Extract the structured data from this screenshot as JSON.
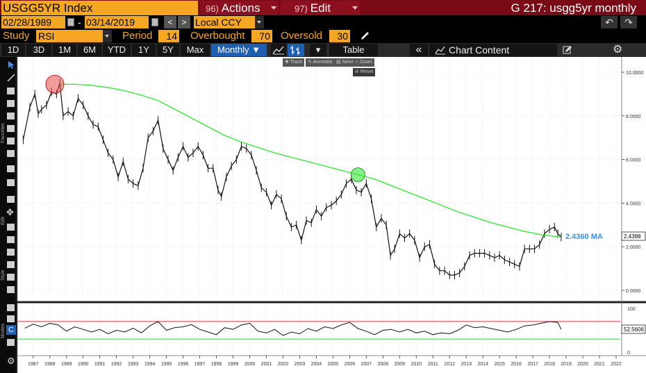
{
  "header": {
    "ticker": "USGG5YR Index",
    "actions_num": "96)",
    "actions_label": "Actions",
    "edit_num": "97)",
    "edit_label": "Edit",
    "window_title": "G 217: usgg5yr monthly"
  },
  "range": {
    "start_date": "02/28/1989",
    "separator": "-",
    "end_date": "03/14/2019",
    "prev": "<",
    "next": ">",
    "currency": "Local CCY"
  },
  "study": {
    "study_label": "Study",
    "study_value": "RSI",
    "period_label": "Period",
    "period_value": "14",
    "overbought_label": "Overbought",
    "overbought_value": "70",
    "oversold_label": "Oversold",
    "oversold_value": "30"
  },
  "toolbar": {
    "periods": [
      "1D",
      "3D",
      "1M",
      "6M",
      "YTD",
      "1Y",
      "5Y",
      "Max"
    ],
    "frequency": "Monthly ▼",
    "table_label": "Table",
    "chart_content_label": "Chart Content",
    "collapse": "«"
  },
  "side": {
    "favorites": "Favorites",
    "edit": "Edit",
    "style": "Style",
    "modes": "Modes"
  },
  "mini_toolbar": {
    "track": "Track",
    "annotate": "Annotate",
    "news": "News",
    "zoom": "Zoom",
    "reset": "Reset"
  },
  "colors": {
    "accent_orange": "#f5a623",
    "header_red": "#7a0a16",
    "ma_green": "#39e639",
    "rsi_red": "#e03030",
    "label_blue": "#3d8fe0"
  },
  "chart_data": {
    "type": "line",
    "price_panel": {
      "series": [
        {
          "x": [
            1986.9,
            1987.3,
            1987.6,
            1987.8,
            1988.0,
            1988.3,
            1988.6,
            1988.9,
            1989.1,
            1989.3,
            1989.6,
            1989.9,
            1990.2,
            1990.5,
            1990.8,
            1991.1,
            1991.4,
            1991.7,
            1992.0,
            1992.3,
            1992.6,
            1992.9,
            1993.2,
            1993.5,
            1993.8,
            1994.1,
            1994.4,
            1994.7,
            1995.0,
            1995.3,
            1995.6,
            1995.9,
            1996.2,
            1996.5,
            1996.8,
            1997.1,
            1997.4,
            1997.7,
            1998.0,
            1998.3,
            1998.6,
            1998.8,
            1999.1,
            1999.4,
            1999.7,
            2000.0,
            2000.3,
            2000.6,
            2000.9,
            2001.2,
            2001.5,
            2001.8,
            2002.1,
            2002.4,
            2002.7,
            2003.0,
            2003.3,
            2003.6,
            2003.9,
            2004.2,
            2004.5,
            2004.8,
            2005.1,
            2005.4,
            2005.7,
            2006.0,
            2006.3,
            2006.6,
            2006.9,
            2007.2,
            2007.5,
            2007.8,
            2008.1,
            2008.4,
            2008.7,
            2008.95,
            2009.2,
            2009.5,
            2009.8,
            2010.1,
            2010.4,
            2010.7,
            2011.0,
            2011.3,
            2011.6,
            2011.9,
            2012.2,
            2012.5,
            2012.8,
            2013.1,
            2013.4,
            2013.7,
            2014.0,
            2014.3,
            2014.6,
            2014.9,
            2015.2,
            2015.5,
            2015.8,
            2016.1,
            2016.4,
            2016.7,
            2017.0,
            2017.3,
            2017.6,
            2017.9,
            2018.2,
            2018.5,
            2018.8,
            2019.0,
            2019.2
          ],
          "values": [
            6.9,
            8.4,
            9.0,
            8.1,
            8.3,
            8.5,
            9.1,
            9.0,
            9.5,
            8.0,
            8.2,
            8.0,
            8.8,
            8.5,
            8.0,
            7.6,
            7.5,
            6.9,
            6.3,
            6.0,
            5.2,
            5.9,
            5.1,
            4.9,
            4.8,
            5.6,
            7.0,
            7.3,
            7.8,
            6.5,
            6.0,
            5.5,
            6.1,
            6.6,
            6.1,
            6.3,
            6.6,
            6.2,
            5.6,
            5.6,
            4.6,
            4.3,
            5.2,
            5.7,
            6.0,
            6.6,
            6.5,
            6.2,
            5.5,
            4.7,
            4.5,
            3.9,
            4.4,
            4.2,
            3.4,
            2.9,
            3.0,
            2.3,
            3.2,
            3.1,
            3.7,
            3.4,
            3.8,
            3.9,
            4.1,
            4.4,
            4.9,
            5.1,
            4.6,
            4.5,
            4.9,
            4.2,
            2.9,
            3.3,
            3.0,
            1.6,
            1.9,
            2.6,
            2.4,
            2.6,
            2.3,
            1.5,
            2.0,
            2.1,
            1.2,
            0.9,
            0.9,
            0.7,
            0.7,
            0.8,
            1.1,
            1.6,
            1.7,
            1.7,
            1.7,
            1.6,
            1.5,
            1.6,
            1.4,
            1.3,
            1.2,
            1.1,
            1.9,
            1.9,
            1.9,
            2.1,
            2.6,
            2.8,
            2.9,
            2.6,
            2.44
          ]
        },
        {
          "x": [
            1989.0,
            1990.0,
            1991.0,
            1992.0,
            1993.0,
            1994.0,
            1995.0,
            1996.0,
            1997.0,
            1998.0,
            1999.0,
            2000.0,
            2001.0,
            2002.0,
            2003.0,
            2004.0,
            2005.0,
            2006.0,
            2007.0,
            2008.0,
            2009.0,
            2010.0,
            2011.0,
            2012.0,
            2013.0,
            2014.0,
            2015.0,
            2016.0,
            2017.0,
            2018.0,
            2019.2
          ],
          "values": [
            9.45,
            9.45,
            9.4,
            9.3,
            9.15,
            8.95,
            8.7,
            8.3,
            7.9,
            7.5,
            7.1,
            6.8,
            6.55,
            6.3,
            6.1,
            5.9,
            5.7,
            5.5,
            5.3,
            5.1,
            4.8,
            4.5,
            4.2,
            3.9,
            3.6,
            3.35,
            3.1,
            2.9,
            2.7,
            2.55,
            2.44
          ]
        }
      ],
      "ylim": [
        -0.5,
        10.5
      ],
      "y_ticks": [
        "10.0000",
        "8.0000",
        "6.0000",
        "4.0000",
        "2.0000",
        "0.0000"
      ],
      "last_value_label": "2.4388",
      "ma_label": "2.4360 MA",
      "annotations": [
        {
          "shape": "circle",
          "color": "red",
          "x": 1988.8,
          "y": 9.45
        },
        {
          "shape": "circle",
          "color": "green",
          "x": 2007.0,
          "y": 5.3
        }
      ]
    },
    "rsi_panel": {
      "series": [
        {
          "x": [
            1987.0,
            1987.5,
            1988.0,
            1988.5,
            1989.0,
            1989.5,
            1990.0,
            1990.5,
            1991.0,
            1991.5,
            1992.0,
            1992.5,
            1993.0,
            1993.5,
            1994.0,
            1994.5,
            1995.0,
            1995.5,
            1996.0,
            1996.5,
            1997.0,
            1997.5,
            1998.0,
            1998.5,
            1999.0,
            1999.5,
            2000.0,
            2000.5,
            2001.0,
            2001.5,
            2002.0,
            2002.5,
            2003.0,
            2003.5,
            2004.0,
            2004.5,
            2005.0,
            2005.5,
            2006.0,
            2006.5,
            2007.0,
            2007.5,
            2008.0,
            2008.5,
            2009.0,
            2009.5,
            2010.0,
            2010.5,
            2011.0,
            2011.5,
            2012.0,
            2012.5,
            2013.0,
            2013.5,
            2014.0,
            2014.5,
            2015.0,
            2015.5,
            2016.0,
            2016.5,
            2017.0,
            2017.5,
            2018.0,
            2018.5,
            2019.0,
            2019.2
          ],
          "values": [
            55,
            64,
            58,
            66,
            62,
            48,
            58,
            52,
            46,
            52,
            42,
            50,
            46,
            55,
            44,
            60,
            70,
            50,
            56,
            58,
            63,
            52,
            46,
            40,
            56,
            52,
            62,
            66,
            48,
            44,
            52,
            38,
            46,
            42,
            54,
            48,
            58,
            54,
            62,
            68,
            54,
            48,
            40,
            50,
            52,
            46,
            52,
            44,
            48,
            40,
            44,
            42,
            50,
            62,
            56,
            58,
            54,
            50,
            46,
            52,
            60,
            62,
            66,
            70,
            68,
            52
          ]
        }
      ],
      "ylim": [
        0,
        100
      ],
      "overbought": 70,
      "oversold": 30,
      "y_ticks": [
        "100",
        "0"
      ],
      "last_value_label": "52.5606"
    },
    "x_ticks": [
      "1987",
      "1988",
      "1989",
      "1990",
      "1991",
      "1992",
      "1993",
      "1994",
      "1995",
      "1996",
      "1997",
      "1998",
      "1999",
      "2000",
      "2001",
      "2002",
      "2003",
      "2004",
      "2005",
      "2006",
      "2007",
      "2008",
      "2009",
      "2010",
      "2011",
      "2012",
      "2013",
      "2014",
      "2015",
      "2016",
      "2017",
      "2018",
      "2019",
      "2020",
      "2021",
      "2022"
    ],
    "grid": true
  }
}
